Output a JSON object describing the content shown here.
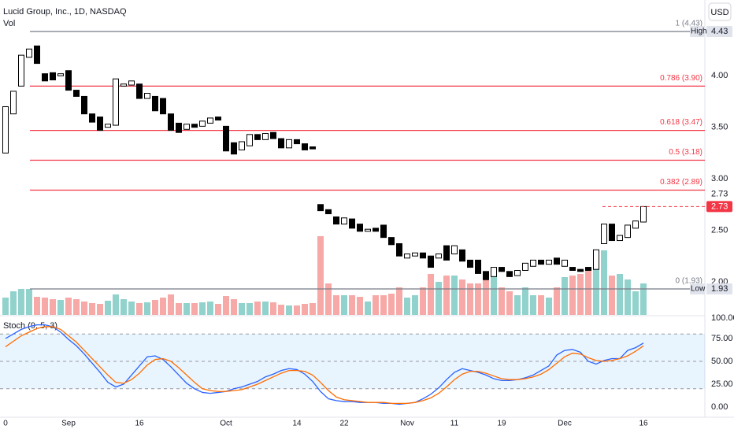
{
  "chart_data": [
    {
      "type": "candlestick",
      "title": "Lucid Group, Inc., 1D, NASDAQ",
      "volume_title": "Vol",
      "currency": "USD",
      "categories": [
        "0",
        null,
        null,
        null,
        null,
        null,
        null,
        null,
        "Sep",
        null,
        null,
        null,
        null,
        null,
        null,
        null,
        null,
        "16",
        null,
        null,
        null,
        null,
        null,
        null,
        null,
        null,
        null,
        null,
        "Oct",
        null,
        null,
        null,
        null,
        null,
        null,
        null,
        null,
        "14",
        null,
        null,
        null,
        null,
        null,
        "22",
        null,
        null,
        null,
        null,
        null,
        null,
        null,
        "Nov",
        null,
        null,
        null,
        null,
        null,
        "11",
        null,
        null,
        null,
        null,
        null,
        "19",
        null,
        null,
        null,
        null,
        null,
        null,
        null,
        "Dec",
        null,
        null,
        null,
        null,
        null,
        null,
        null,
        null,
        null,
        "16"
      ],
      "open": [
        3.25,
        3.63,
        3.9,
        4.18,
        4.29,
        4.02,
        4.03,
        4.0,
        4.05,
        3.86,
        3.8,
        3.63,
        3.6,
        3.5,
        3.52,
        3.9,
        3.91,
        3.92,
        3.78,
        3.8,
        3.78,
        3.63,
        3.54,
        3.48,
        3.53,
        3.51,
        3.54,
        3.6,
        3.51,
        3.35,
        3.28,
        3.32,
        3.43,
        3.38,
        3.45,
        3.39,
        3.3,
        3.38,
        3.34,
        3.31,
        2.75,
        2.7,
        2.63,
        2.56,
        2.61,
        2.56,
        2.49,
        2.52,
        2.55,
        2.43,
        2.37,
        2.23,
        2.25,
        2.28,
        2.25,
        2.23,
        2.35,
        2.27,
        2.31,
        2.21,
        2.21,
        2.1,
        2.05,
        2.14,
        2.1,
        2.06,
        2.11,
        2.15,
        2.21,
        2.17,
        2.23,
        2.15,
        2.14,
        2.12,
        2.14,
        2.12,
        2.37,
        2.56,
        2.4,
        2.43,
        2.52,
        2.58
      ],
      "high": {
        "name": "High",
        "value": 4.43,
        "label": "4.43"
      },
      "low": {
        "name": "Low",
        "value": 1.93,
        "label": "1.93"
      },
      "close": [
        3.7,
        3.85,
        4.2,
        4.26,
        4.12,
        3.95,
        3.96,
        4.02,
        3.86,
        3.8,
        3.63,
        3.55,
        3.47,
        3.53,
        3.97,
        3.92,
        3.95,
        3.78,
        3.83,
        3.66,
        3.63,
        3.47,
        3.45,
        3.53,
        3.5,
        3.56,
        3.59,
        3.57,
        3.27,
        3.24,
        3.36,
        3.43,
        3.38,
        3.44,
        3.39,
        3.3,
        3.38,
        3.34,
        3.28,
        3.29,
        2.69,
        2.66,
        2.56,
        2.62,
        2.52,
        2.49,
        2.51,
        2.49,
        2.43,
        2.36,
        2.25,
        2.27,
        2.28,
        2.23,
        2.14,
        2.27,
        2.21,
        2.35,
        2.2,
        2.14,
        2.08,
        2.02,
        2.14,
        2.1,
        2.05,
        2.11,
        2.18,
        2.21,
        2.17,
        2.21,
        2.17,
        2.21,
        2.11,
        2.1,
        2.11,
        2.31,
        2.56,
        2.4,
        2.45,
        2.55,
        2.59,
        2.73
      ],
      "volume": [
        22,
        30,
        33,
        33,
        23,
        22,
        20,
        19,
        22,
        20,
        17,
        15,
        14,
        18,
        26,
        20,
        17,
        15,
        16,
        19,
        22,
        26,
        15,
        15,
        15,
        16,
        17,
        14,
        24,
        20,
        15,
        15,
        17,
        17,
        16,
        13,
        12,
        12,
        14,
        15,
        100,
        40,
        25,
        25,
        25,
        23,
        17,
        25,
        25,
        27,
        35,
        22,
        25,
        35,
        52,
        42,
        50,
        50,
        45,
        40,
        40,
        45,
        52,
        35,
        30,
        25,
        35,
        25,
        25,
        22,
        35,
        48,
        50,
        52,
        60,
        82,
        82,
        50,
        52,
        45,
        30,
        40
      ],
      "up_color": "#26a69a",
      "down_color": "#ef5350",
      "ylim": [
        1.678,
        4.736
      ],
      "yticks": [
        {
          "value": 2,
          "label": "2.00"
        },
        {
          "value": 2.5,
          "label": "2.50"
        },
        {
          "value": 3,
          "label": "3.00"
        },
        {
          "value": 3.5,
          "label": "3.50"
        },
        {
          "value": 4,
          "label": "4.00"
        }
      ],
      "fib_levels": [
        {
          "label": "1 (4.43)",
          "value": 4.43,
          "color": "#787b86"
        },
        {
          "label": "0.786 (3.90)",
          "value": 3.9,
          "color": "#f23645"
        },
        {
          "label": "0.618 (3.47)",
          "value": 3.47,
          "color": "#f23645"
        },
        {
          "label": "0.5 (3.18)",
          "value": 3.18,
          "color": "#f23645"
        },
        {
          "label": "0.382 (2.89)",
          "value": 2.89,
          "color": "#f23645"
        },
        {
          "label": "0 (1.93)",
          "value": 1.93,
          "color": "#787b86"
        }
      ],
      "last_price": {
        "value": 2.73,
        "label": "2.73",
        "color": "#f23645"
      }
    },
    {
      "type": "line",
      "title": "Stoch (9, 5, 3)",
      "series": [
        {
          "color": "#2962ff",
          "values": [
            75,
            80,
            85,
            88,
            90,
            90,
            88,
            82,
            74,
            67,
            58,
            48,
            38,
            27,
            22,
            25,
            35,
            45,
            55,
            56,
            52,
            44,
            35,
            26,
            20,
            16,
            15,
            16,
            17,
            20,
            22,
            25,
            28,
            33,
            36,
            40,
            42,
            41,
            36,
            28,
            17,
            9,
            7,
            6,
            6,
            5,
            5,
            5,
            4,
            4,
            3,
            4,
            5,
            9,
            14,
            21,
            30,
            38,
            42,
            40,
            38,
            35,
            31,
            29,
            29,
            30,
            32,
            35,
            40,
            45,
            57,
            62,
            63,
            60,
            50,
            47,
            51,
            53,
            53,
            62,
            65,
            70
          ]
        },
        {
          "color": "#ff6d00",
          "values": [
            66,
            72,
            78,
            82,
            86,
            88,
            88,
            85,
            78,
            71,
            62,
            53,
            44,
            35,
            27,
            26,
            30,
            37,
            46,
            52,
            53,
            50,
            43,
            35,
            27,
            20,
            18,
            17,
            17,
            18,
            19,
            22,
            25,
            29,
            33,
            37,
            40,
            40,
            39,
            35,
            27,
            18,
            11,
            8,
            7,
            6,
            5,
            5,
            5,
            4,
            4,
            4,
            5,
            7,
            10,
            15,
            22,
            30,
            36,
            39,
            39,
            37,
            34,
            31,
            30,
            30,
            31,
            33,
            36,
            41,
            48,
            55,
            59,
            58,
            54,
            51,
            50,
            51,
            53,
            56,
            61,
            67
          ]
        }
      ],
      "bands": [
        80,
        50,
        20
      ],
      "band_color": "#2196f3",
      "ylim": [
        -11.2,
        100
      ],
      "yticks": [
        {
          "value": 0,
          "label": "0.00"
        },
        {
          "value": 25,
          "label": "25.00"
        },
        {
          "value": 50,
          "label": "50.00"
        },
        {
          "value": 75,
          "label": "75.00"
        },
        {
          "value": 100,
          "label": "100.00"
        }
      ]
    }
  ]
}
